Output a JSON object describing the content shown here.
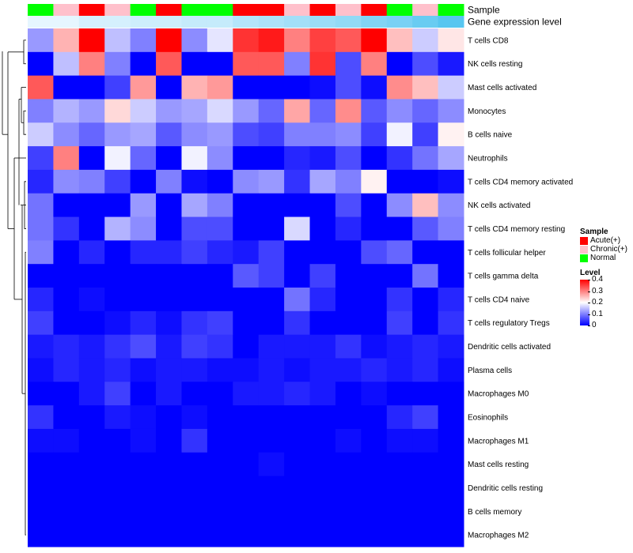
{
  "chart_data": {
    "type": "heatmap",
    "annotation_rows": [
      "Sample",
      "Gene expression level"
    ],
    "sample_groups": [
      "Normal",
      "Chronic(+)",
      "Acute(+)",
      "Chronic(+)",
      "Normal",
      "Acute(+)",
      "Normal",
      "Normal",
      "Acute(+)",
      "Acute(+)",
      "Chronic(+)",
      "Acute(+)",
      "Chronic(+)",
      "Acute(+)",
      "Normal",
      "Chronic(+)",
      "Normal"
    ],
    "expression_levels": [
      0.5,
      0.5,
      0.48,
      0.48,
      0.47,
      0.47,
      0.46,
      0.46,
      0.44,
      0.43,
      0.42,
      0.41,
      0.4,
      0.38,
      0.37,
      0.35,
      0.33
    ],
    "rows": [
      "T cells CD8",
      "NK cells resting",
      "Mast cells activated",
      "Monocytes",
      "B cells naive",
      "Neutrophils",
      "T cells CD4 memory activated",
      "NK cells activated",
      "T cells CD4 memory resting",
      "T cells follicular helper",
      "T cells gamma delta",
      "T cells CD4 naive",
      "T cells regulatory  Tregs",
      "Dendritic cells activated",
      "Plasma cells",
      "Macrophages M0",
      "Eosinophils",
      "Macrophages M1",
      "Mast cells resting",
      "Dendritic cells resting",
      "B cells memory",
      "Macrophages M2"
    ],
    "values": [
      [
        0.12,
        0.26,
        0.4,
        0.15,
        0.1,
        0.4,
        0.11,
        0.18,
        0.36,
        0.38,
        0.3,
        0.35,
        0.33,
        0.4,
        0.25,
        0.16,
        0.22
      ],
      [
        0.0,
        0.15,
        0.3,
        0.1,
        0.0,
        0.33,
        0.0,
        0.0,
        0.33,
        0.33,
        0.1,
        0.36,
        0.06,
        0.3,
        0.0,
        0.06,
        0.02
      ],
      [
        0.33,
        0.0,
        0.0,
        0.05,
        0.28,
        0.0,
        0.26,
        0.28,
        0.0,
        0.0,
        0.0,
        0.01,
        0.06,
        0.01,
        0.29,
        0.25,
        0.16
      ],
      [
        0.1,
        0.14,
        0.12,
        0.23,
        0.16,
        0.12,
        0.13,
        0.17,
        0.12,
        0.08,
        0.27,
        0.08,
        0.29,
        0.07,
        0.11,
        0.08,
        0.11
      ],
      [
        0.16,
        0.11,
        0.08,
        0.12,
        0.13,
        0.07,
        0.11,
        0.12,
        0.06,
        0.05,
        0.1,
        0.1,
        0.11,
        0.05,
        0.19,
        0.05,
        0.21
      ],
      [
        0.05,
        0.3,
        0.0,
        0.19,
        0.08,
        0.0,
        0.19,
        0.11,
        0.0,
        0.0,
        0.03,
        0.02,
        0.06,
        0.0,
        0.04,
        0.09,
        0.13
      ],
      [
        0.03,
        0.11,
        0.1,
        0.05,
        0.0,
        0.1,
        0.01,
        0.0,
        0.11,
        0.12,
        0.04,
        0.13,
        0.1,
        0.21,
        0.0,
        0.0,
        0.01
      ],
      [
        0.09,
        0.0,
        0.0,
        0.0,
        0.12,
        0.0,
        0.13,
        0.1,
        0.0,
        0.0,
        0.0,
        0.0,
        0.06,
        0.0,
        0.11,
        0.25,
        0.11
      ],
      [
        0.09,
        0.04,
        0.0,
        0.14,
        0.11,
        0.0,
        0.06,
        0.06,
        0.0,
        0.0,
        0.17,
        0.0,
        0.03,
        0.0,
        0.0,
        0.07,
        0.1
      ],
      [
        0.1,
        0.0,
        0.03,
        0.0,
        0.03,
        0.03,
        0.05,
        0.03,
        0.02,
        0.05,
        0.0,
        0.0,
        0.0,
        0.06,
        0.08,
        0.0,
        0.0
      ],
      [
        0.0,
        0.0,
        0.0,
        0.0,
        0.0,
        0.0,
        0.0,
        0.0,
        0.07,
        0.05,
        0.0,
        0.05,
        0.0,
        0.0,
        0.0,
        0.09,
        0.0
      ],
      [
        0.03,
        0.0,
        0.01,
        0.0,
        0.0,
        0.0,
        0.0,
        0.0,
        0.0,
        0.0,
        0.09,
        0.03,
        0.0,
        0.0,
        0.04,
        0.0,
        0.03
      ],
      [
        0.05,
        0.0,
        0.0,
        0.01,
        0.03,
        0.01,
        0.04,
        0.05,
        0.0,
        0.0,
        0.04,
        0.0,
        0.0,
        0.0,
        0.05,
        0.0,
        0.04
      ],
      [
        0.02,
        0.03,
        0.02,
        0.04,
        0.06,
        0.02,
        0.05,
        0.04,
        0.0,
        0.02,
        0.02,
        0.02,
        0.04,
        0.01,
        0.02,
        0.03,
        0.02
      ],
      [
        0.01,
        0.03,
        0.02,
        0.03,
        0.01,
        0.02,
        0.02,
        0.01,
        0.01,
        0.02,
        0.01,
        0.02,
        0.02,
        0.03,
        0.02,
        0.03,
        0.01
      ],
      [
        0.0,
        0.0,
        0.02,
        0.05,
        0.0,
        0.02,
        0.0,
        0.0,
        0.02,
        0.02,
        0.03,
        0.02,
        0.0,
        0.01,
        0.0,
        0.0,
        0.0
      ],
      [
        0.04,
        0.0,
        0.0,
        0.02,
        0.01,
        0.0,
        0.01,
        0.0,
        0.0,
        0.0,
        0.0,
        0.0,
        0.0,
        0.0,
        0.03,
        0.05,
        0.0
      ],
      [
        0.01,
        0.01,
        0.0,
        0.0,
        0.01,
        0.0,
        0.04,
        0.0,
        0.0,
        0.0,
        0.0,
        0.0,
        0.01,
        0.0,
        0.01,
        0.01,
        0.0
      ],
      [
        0.0,
        0.0,
        0.0,
        0.0,
        0.0,
        0.0,
        0.0,
        0.0,
        0.0,
        0.01,
        0.0,
        0.0,
        0.0,
        0.0,
        0.0,
        0.0,
        0.0
      ],
      [
        0.0,
        0.0,
        0.0,
        0.0,
        0.0,
        0.0,
        0.0,
        0.0,
        0.0,
        0.0,
        0.0,
        0.0,
        0.0,
        0.0,
        0.0,
        0.0,
        0.0
      ],
      [
        0.0,
        0.0,
        0.0,
        0.0,
        0.0,
        0.0,
        0.0,
        0.0,
        0.0,
        0.0,
        0.0,
        0.0,
        0.0,
        0.0,
        0.0,
        0.0,
        0.0
      ],
      [
        0.0,
        0.0,
        0.0,
        0.0,
        0.0,
        0.0,
        0.0,
        0.0,
        0.0,
        0.0,
        0.0,
        0.0,
        0.0,
        0.0,
        0.0,
        0.0,
        0.0
      ]
    ],
    "color_scale": {
      "min": 0,
      "mid": 0.2,
      "max": 0.4,
      "low_color": "#0000ff",
      "mid_color": "#ffffff",
      "high_color": "#ff0000"
    },
    "sample_colors": {
      "Acute(+)": "#ff0000",
      "Chronic(+)": "#ffc0cb",
      "Normal": "#00ff00"
    },
    "expression_color_range": [
      "#e6f6ff",
      "#58c6f0"
    ],
    "sample_legend": {
      "title": "Sample",
      "items": [
        "Acute(+)",
        "Chronic(+)",
        "Normal"
      ]
    },
    "level_legend": {
      "title": "Level",
      "ticks": [
        "0.4",
        "0.3",
        "0.2",
        "0.1",
        "0"
      ]
    },
    "row_dendrogram": true
  }
}
